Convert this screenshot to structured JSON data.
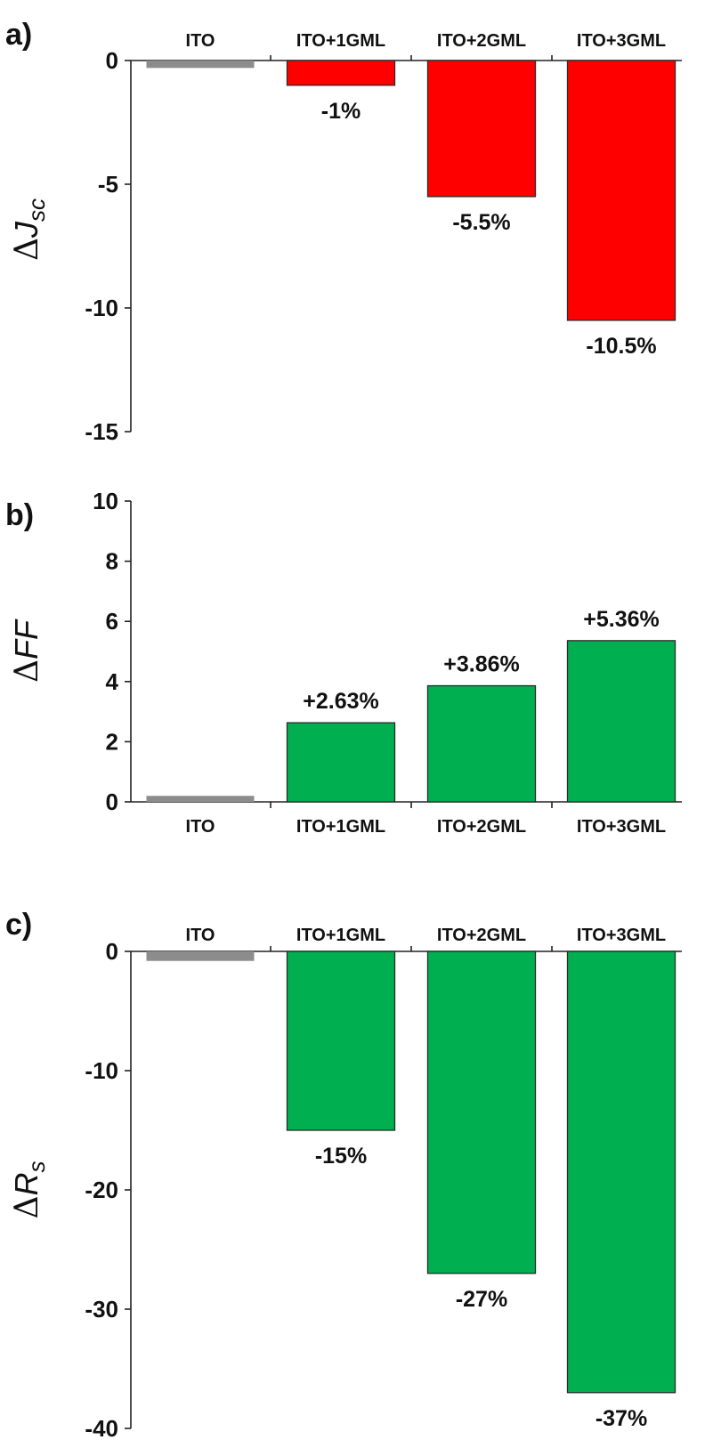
{
  "chart_data": [
    {
      "type": "bar",
      "panel_label": "a)",
      "categories": [
        "ITO",
        "ITO+1GML",
        "ITO+2GML",
        "ITO+3GML"
      ],
      "values": [
        -0.3,
        -1.0,
        -5.5,
        -10.5
      ],
      "data_labels": [
        "",
        "-1%",
        "-5.5%",
        "-10.5%"
      ],
      "bar_colors": [
        "#8c8c8c",
        "#ff0000",
        "#ff0000",
        "#ff0000"
      ],
      "ylabel": {
        "symbol": "Δ",
        "var": "J",
        "sub": "sc"
      },
      "ylim": [
        -15,
        0
      ],
      "yticks": [
        0,
        -5,
        -10,
        -15
      ],
      "ytick_labels": [
        "0",
        "-5",
        "-10",
        "-15"
      ],
      "category_axis_position": "top",
      "grid": false
    },
    {
      "type": "bar",
      "panel_label": "b)",
      "categories": [
        "ITO",
        "ITO+1GML",
        "ITO+2GML",
        "ITO+3GML"
      ],
      "values": [
        0.2,
        2.63,
        3.86,
        5.36
      ],
      "data_labels": [
        "",
        "+2.63%",
        "+3.86%",
        "+5.36%"
      ],
      "bar_colors": [
        "#8c8c8c",
        "#00b050",
        "#00b050",
        "#00b050"
      ],
      "ylabel": {
        "symbol": "Δ",
        "var": "FF",
        "sub": ""
      },
      "ylim": [
        0,
        10
      ],
      "yticks": [
        0,
        2,
        4,
        6,
        8,
        10
      ],
      "ytick_labels": [
        "0",
        "2",
        "4",
        "6",
        "8",
        "10"
      ],
      "category_axis_position": "bottom",
      "grid": false
    },
    {
      "type": "bar",
      "panel_label": "c)",
      "categories": [
        "ITO",
        "ITO+1GML",
        "ITO+2GML",
        "ITO+3GML"
      ],
      "values": [
        -0.8,
        -15,
        -27,
        -37
      ],
      "data_labels": [
        "",
        "-15%",
        "-27%",
        "-37%"
      ],
      "bar_colors": [
        "#8c8c8c",
        "#00b050",
        "#00b050",
        "#00b050"
      ],
      "ylabel": {
        "symbol": "Δ",
        "var": "R",
        "sub": "s"
      },
      "ylim": [
        -40,
        0
      ],
      "yticks": [
        0,
        -10,
        -20,
        -30,
        -40
      ],
      "ytick_labels": [
        "0",
        "-10",
        "-20",
        "-30",
        "-40"
      ],
      "category_axis_position": "top",
      "grid": false
    }
  ]
}
